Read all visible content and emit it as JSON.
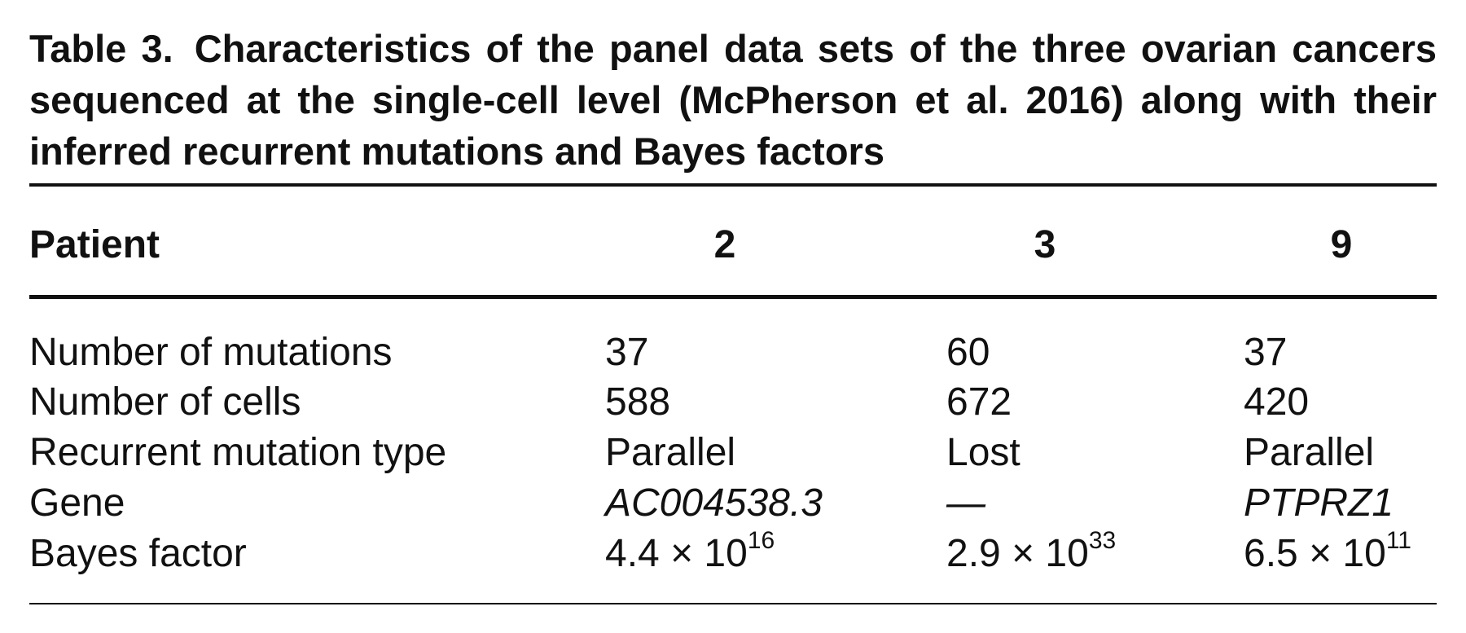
{
  "caption": {
    "label": "Table 3.",
    "text": "Characteristics of the panel data sets of the three ovarian cancers sequenced at the single-cell level (McPherson et al. 2016) along with their inferred recurrent mutations and Bayes factors"
  },
  "table": {
    "header": [
      "Patient",
      "2",
      "3",
      "9"
    ],
    "rows": [
      [
        "Number of mutations",
        "37",
        "60",
        "37"
      ],
      [
        "Number of cells",
        "588",
        "672",
        "420"
      ],
      [
        "Recurrent mutation type",
        "Parallel",
        "Lost",
        "Parallel"
      ],
      [
        "Gene",
        "AC004538.3",
        "—",
        "PTPRZ1"
      ],
      [
        "Bayes factor",
        {
          "base": "4.4 × 10",
          "exponent": "16"
        },
        {
          "base": "2.9 × 10",
          "exponent": "33"
        },
        {
          "base": "6.5 × 10",
          "exponent": "11"
        }
      ]
    ]
  }
}
